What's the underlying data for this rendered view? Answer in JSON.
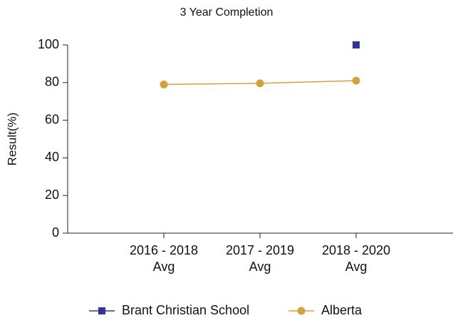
{
  "chart_data": {
    "type": "line",
    "title": "3 Year Completion",
    "ylabel": "Result(%)",
    "categories": [
      "2016 - 2018 Avg",
      "2017 - 2019 Avg",
      "2018 - 2020 Avg"
    ],
    "series": [
      {
        "name": "Brant Christian School",
        "color": "#333399",
        "marker": "square",
        "values": [
          null,
          null,
          100
        ]
      },
      {
        "name": "Alberta",
        "color": "#d4a23c",
        "marker": "circle",
        "values": [
          79,
          79.6,
          81
        ]
      }
    ],
    "ylim": [
      0,
      100
    ],
    "yticks": [
      0,
      20,
      40,
      60,
      80,
      100
    ],
    "grid": false
  }
}
